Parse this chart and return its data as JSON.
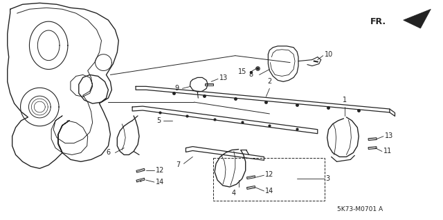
{
  "background_color": "#ffffff",
  "diagram_code": "5K73-M0701 A",
  "fr_label": "FR.",
  "line_color": "#222222",
  "label_fontsize": 7.0
}
